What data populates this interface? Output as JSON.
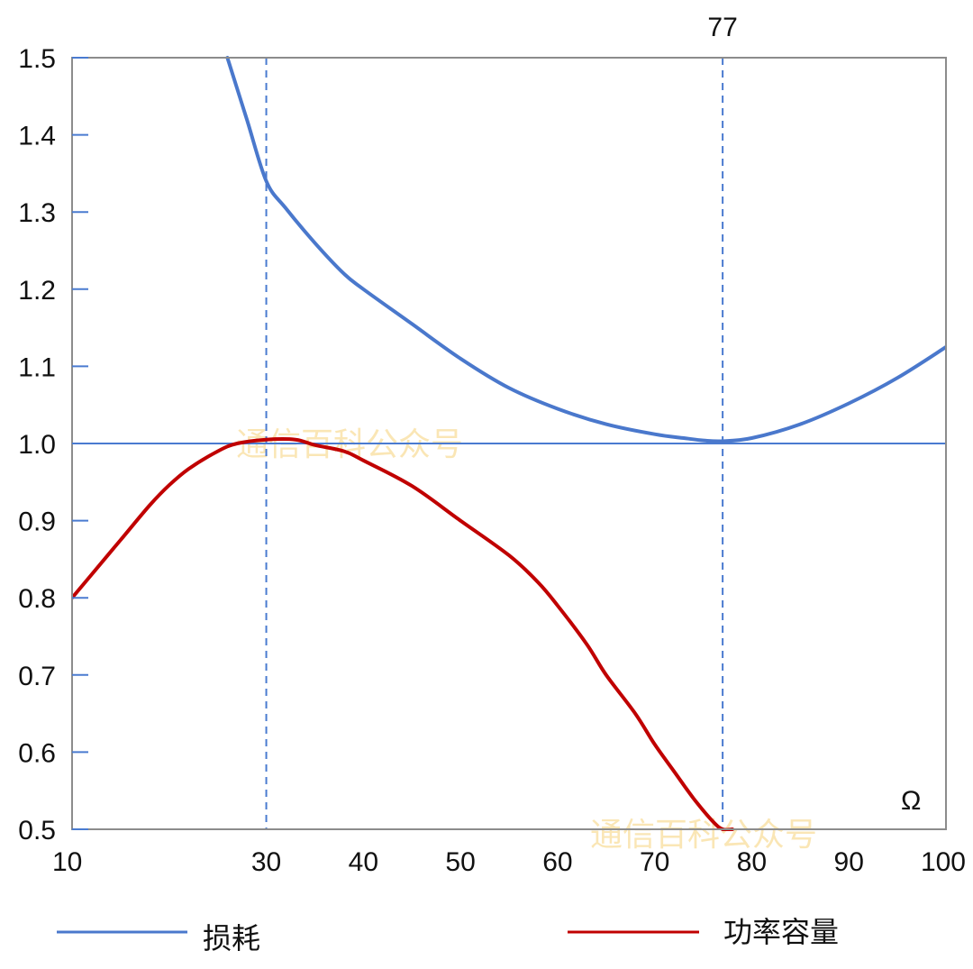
{
  "chart_data": {
    "type": "line",
    "title": "",
    "xlabel": "",
    "ylabel": "",
    "unit_label": "Ω",
    "xlim": [
      10,
      100
    ],
    "ylim": [
      0.5,
      1.5
    ],
    "x_ticks": [
      {
        "value": 10,
        "label": "10"
      },
      {
        "value": 30,
        "label": "30"
      },
      {
        "value": 40,
        "label": "40"
      },
      {
        "value": 50,
        "label": "50"
      },
      {
        "value": 60,
        "label": "60"
      },
      {
        "value": 70,
        "label": "70"
      },
      {
        "value": 80,
        "label": "80"
      },
      {
        "value": 90,
        "label": "90"
      },
      {
        "value": 100,
        "label": "100"
      }
    ],
    "y_ticks": [
      {
        "value": 0.5,
        "label": "0.5"
      },
      {
        "value": 0.6,
        "label": "0.6"
      },
      {
        "value": 0.7,
        "label": "0.7"
      },
      {
        "value": 0.8,
        "label": "0.8"
      },
      {
        "value": 0.9,
        "label": "0.9"
      },
      {
        "value": 1.0,
        "label": "1.0"
      },
      {
        "value": 1.1,
        "label": "1.1"
      },
      {
        "value": 1.2,
        "label": "1.2"
      },
      {
        "value": 1.3,
        "label": "1.3"
      },
      {
        "value": 1.4,
        "label": "1.4"
      },
      {
        "value": 1.5,
        "label": "1.5"
      }
    ],
    "reference_lines": {
      "horizontal": [
        {
          "y": 1.0,
          "color": "#4a7bd0",
          "style": "solid"
        }
      ],
      "vertical": [
        {
          "x": 30,
          "color": "#4a7bd0",
          "style": "dashed",
          "label": ""
        },
        {
          "x": 77,
          "color": "#4a7bd0",
          "style": "dashed",
          "label": "77"
        }
      ]
    },
    "series": [
      {
        "name": "损耗",
        "color": "#4a78cc",
        "x": [
          26,
          28,
          30,
          32,
          35,
          38,
          40,
          45,
          50,
          55,
          60,
          65,
          70,
          73,
          75,
          77,
          80,
          85,
          90,
          95,
          100
        ],
        "y": [
          1.5,
          1.42,
          1.34,
          1.305,
          1.26,
          1.22,
          1.2,
          1.155,
          1.11,
          1.072,
          1.045,
          1.025,
          1.012,
          1.007,
          1.004,
          1.003,
          1.007,
          1.025,
          1.052,
          1.085,
          1.125
        ]
      },
      {
        "name": "功率容量",
        "color": "#c00000",
        "x": [
          10,
          12,
          15,
          18,
          20,
          22,
          25,
          27,
          30,
          33,
          35,
          38,
          40,
          45,
          50,
          55,
          58,
          60,
          63,
          65,
          68,
          70,
          72,
          74,
          76,
          77,
          78
        ],
        "y": [
          0.8,
          0.83,
          0.875,
          0.92,
          0.946,
          0.967,
          0.99,
          1.0,
          1.005,
          1.005,
          0.998,
          0.99,
          0.978,
          0.945,
          0.9,
          0.855,
          0.82,
          0.79,
          0.74,
          0.7,
          0.65,
          0.61,
          0.575,
          0.54,
          0.51,
          0.5,
          0.5
        ]
      }
    ],
    "legend": {
      "placement": "bottom"
    },
    "watermarks": [
      "通信百科公众号",
      "通信百科公众号"
    ],
    "grid": false
  }
}
